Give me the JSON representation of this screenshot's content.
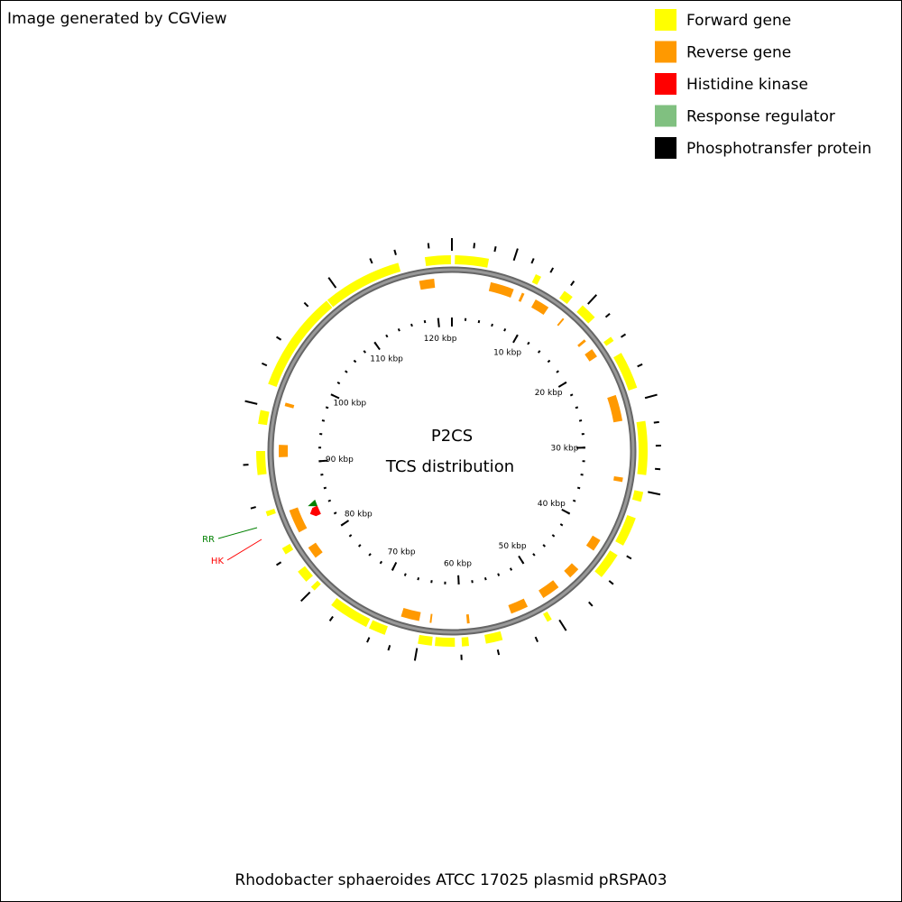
{
  "header": {
    "title": "Image generated by CGView"
  },
  "legend": {
    "items": [
      {
        "label": "Forward gene",
        "color": "#ffff00"
      },
      {
        "label": "Reverse gene",
        "color": "#ff9900"
      },
      {
        "label": "Histidine kinase",
        "color": "#ff0000"
      },
      {
        "label": "Response regulator",
        "color": "#80c080"
      },
      {
        "label": "Phosphotransfer protein",
        "color": "#000000"
      }
    ]
  },
  "map": {
    "title": "P2CS",
    "subtitle": "TCS distribution",
    "length_kbp": 122,
    "minor_tick_step": 2,
    "tick_labels": [
      {
        "value": 10,
        "label": "10 kbp"
      },
      {
        "value": 20,
        "label": "20 kbp"
      },
      {
        "value": 30,
        "label": "30 kbp"
      },
      {
        "value": 40,
        "label": "40 kbp"
      },
      {
        "value": 50,
        "label": "50 kbp"
      },
      {
        "value": 60,
        "label": "60 kbp"
      },
      {
        "value": 70,
        "label": "70 kbp"
      },
      {
        "value": 80,
        "label": "80 kbp"
      },
      {
        "value": 90,
        "label": "90 kbp"
      },
      {
        "value": 100,
        "label": "100 kbp"
      },
      {
        "value": 110,
        "label": "110 kbp"
      },
      {
        "value": 120,
        "label": "120 kbp"
      }
    ],
    "forward_genes": [
      [
        119.3,
        121.9
      ],
      [
        0.3,
        3.7
      ],
      [
        8.6,
        9.2
      ],
      [
        11.9,
        12.9
      ],
      [
        14.2,
        15.9
      ],
      [
        18.4,
        18.9
      ],
      [
        20.3,
        24.1
      ],
      [
        27.5,
        32.9
      ],
      [
        34.6,
        35.6
      ],
      [
        37.3,
        40.3
      ],
      [
        41.4,
        44.1
      ],
      [
        50.6,
        51.1
      ],
      [
        55.9,
        57.6
      ],
      [
        59.3,
        60.0
      ],
      [
        60.7,
        62.7
      ],
      [
        63.0,
        64.4
      ],
      [
        67.8,
        69.5
      ],
      [
        69.8,
        73.9
      ],
      [
        76.1,
        76.6
      ],
      [
        77.3,
        78.6
      ],
      [
        80.7,
        81.4
      ],
      [
        84.9,
        85.4
      ],
      [
        89.1,
        91.5
      ],
      [
        94.2,
        95.6
      ],
      [
        98.3,
        108.5
      ],
      [
        108.6,
        116.6
      ]
    ],
    "reverse_genes": [
      [
        118.3,
        120.0
      ],
      [
        4.4,
        7.1
      ],
      [
        8.1,
        8.4
      ],
      [
        9.8,
        11.5
      ],
      [
        13.5,
        13.7
      ],
      [
        16.9,
        17.2
      ],
      [
        18.3,
        19.3
      ],
      [
        24.1,
        27.1
      ],
      [
        33.5,
        34.0
      ],
      [
        41.0,
        42.4
      ],
      [
        45.1,
        46.4
      ],
      [
        48.1,
        50.2
      ],
      [
        52.2,
        54.2
      ],
      [
        59.0,
        59.3
      ],
      [
        63.3,
        63.5
      ],
      [
        64.7,
        66.8
      ],
      [
        78.6,
        80.0
      ],
      [
        82.0,
        84.7
      ],
      [
        90.8,
        92.2
      ],
      [
        96.6,
        97.0
      ]
    ],
    "outer_marks": [
      0,
      119.8,
      2.1,
      4.1,
      6.1,
      7.8,
      9.8,
      12.1,
      14.5,
      16.6,
      19.0,
      22.2,
      25.3,
      27.8,
      30.0,
      32.2,
      34.5,
      41.0,
      43.9,
      46.7,
      50.0,
      52.8,
      56.6,
      60.1,
      64.4,
      67.0,
      69.1,
      73.1,
      76.3,
      80.3,
      86.1,
      90.2,
      96.1,
      99.9,
      102.7,
      106.8,
      110.0,
      114.2,
      116.6
    ]
  },
  "callouts": [
    {
      "label": "RR",
      "color": "#008000",
      "position_kbp": 84.4
    },
    {
      "label": "HK",
      "color": "#ff0000",
      "position_kbp": 83.4
    }
  ],
  "footer": {
    "caption": "Rhodobacter sphaeroides ATCC 17025 plasmid pRSPA03"
  }
}
